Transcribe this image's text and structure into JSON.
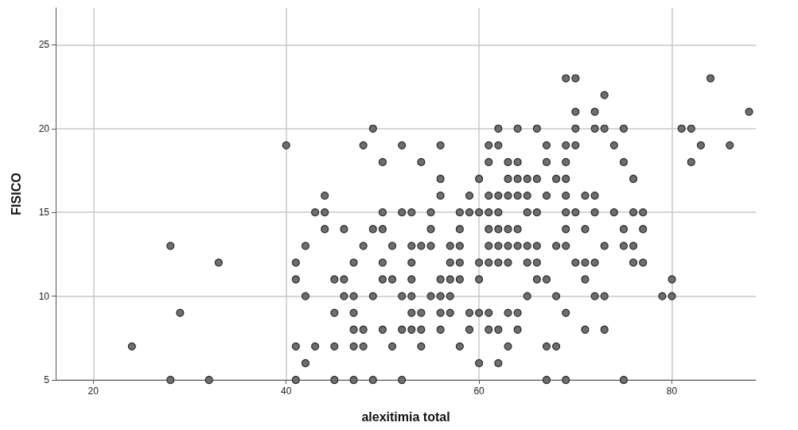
{
  "chart_data": {
    "type": "scatter",
    "xlabel": "alexitimia total",
    "ylabel": "FISICO",
    "xlim": [
      16.1,
      88.7
    ],
    "xticks": [
      20,
      40,
      60,
      80
    ],
    "ylim": [
      5,
      27.2
    ],
    "yticks": [
      5,
      10,
      15,
      20,
      25
    ],
    "grid": true,
    "marker": "circle",
    "series": [
      {
        "color": "#6e6e6e",
        "x": [
          24,
          28,
          28,
          29,
          32,
          33,
          40,
          41,
          41,
          41,
          41,
          42,
          42,
          42,
          43,
          43,
          44,
          44,
          44,
          45,
          45,
          45,
          45,
          46,
          46,
          46,
          47,
          47,
          47,
          47,
          47,
          47,
          48,
          48,
          48,
          48,
          49,
          49,
          49,
          49,
          50,
          50,
          50,
          50,
          50,
          50,
          51,
          51,
          51,
          52,
          52,
          52,
          52,
          52,
          53,
          53,
          53,
          53,
          53,
          53,
          53,
          54,
          54,
          54,
          54,
          54,
          55,
          55,
          55,
          55,
          56,
          56,
          56,
          56,
          56,
          56,
          56,
          57,
          57,
          57,
          57,
          57,
          58,
          58,
          58,
          58,
          58,
          58,
          59,
          59,
          59,
          59,
          60,
          60,
          60,
          60,
          60,
          60,
          61,
          61,
          61,
          61,
          61,
          61,
          61,
          61,
          61,
          62,
          62,
          62,
          62,
          62,
          62,
          62,
          62,
          62,
          63,
          63,
          63,
          63,
          63,
          63,
          63,
          63,
          64,
          64,
          64,
          64,
          64,
          64,
          64,
          64,
          65,
          65,
          65,
          65,
          65,
          65,
          66,
          66,
          66,
          66,
          66,
          66,
          67,
          67,
          67,
          67,
          67,
          67,
          68,
          68,
          68,
          68,
          69,
          69,
          69,
          69,
          69,
          69,
          69,
          69,
          69,
          69,
          70,
          70,
          70,
          70,
          70,
          70,
          71,
          71,
          71,
          71,
          71,
          72,
          72,
          72,
          72,
          72,
          72,
          73,
          73,
          73,
          73,
          73,
          74,
          74,
          75,
          75,
          75,
          75,
          75,
          76,
          76,
          76,
          76,
          77,
          77,
          77,
          79,
          80,
          80,
          81,
          82,
          82,
          83,
          84,
          86,
          88
        ],
        "values": [
          7,
          13,
          5,
          9,
          5,
          12,
          19,
          12,
          11,
          7,
          5,
          13,
          10,
          6,
          15,
          7,
          16,
          15,
          14,
          11,
          9,
          7,
          5,
          14,
          11,
          10,
          12,
          10,
          9,
          8,
          7,
          5,
          19,
          13,
          8,
          7,
          20,
          14,
          10,
          5,
          18,
          15,
          14,
          12,
          11,
          8,
          13,
          11,
          7,
          19,
          15,
          10,
          8,
          5,
          15,
          13,
          12,
          11,
          10,
          9,
          8,
          18,
          13,
          9,
          8,
          7,
          15,
          14,
          13,
          10,
          19,
          17,
          16,
          11,
          10,
          9,
          8,
          13,
          12,
          11,
          10,
          9,
          15,
          14,
          13,
          12,
          11,
          7,
          16,
          15,
          9,
          8,
          17,
          15,
          12,
          11,
          9,
          6,
          19,
          18,
          16,
          15,
          14,
          13,
          12,
          9,
          8,
          20,
          19,
          16,
          15,
          14,
          13,
          12,
          8,
          6,
          18,
          17,
          16,
          14,
          13,
          12,
          9,
          7,
          20,
          18,
          17,
          16,
          14,
          13,
          9,
          8,
          17,
          16,
          15,
          13,
          12,
          10,
          20,
          17,
          15,
          13,
          12,
          11,
          19,
          18,
          16,
          11,
          7,
          5,
          17,
          13,
          10,
          7,
          23,
          19,
          18,
          17,
          16,
          15,
          14,
          13,
          9,
          5,
          23,
          21,
          20,
          19,
          15,
          12,
          16,
          14,
          12,
          11,
          8,
          21,
          20,
          16,
          15,
          12,
          10,
          22,
          20,
          13,
          10,
          8,
          19,
          15,
          20,
          18,
          14,
          13,
          5,
          17,
          15,
          13,
          12,
          15,
          14,
          12,
          10,
          11,
          10,
          20,
          20,
          18,
          19,
          23,
          19,
          21
        ]
      }
    ]
  }
}
